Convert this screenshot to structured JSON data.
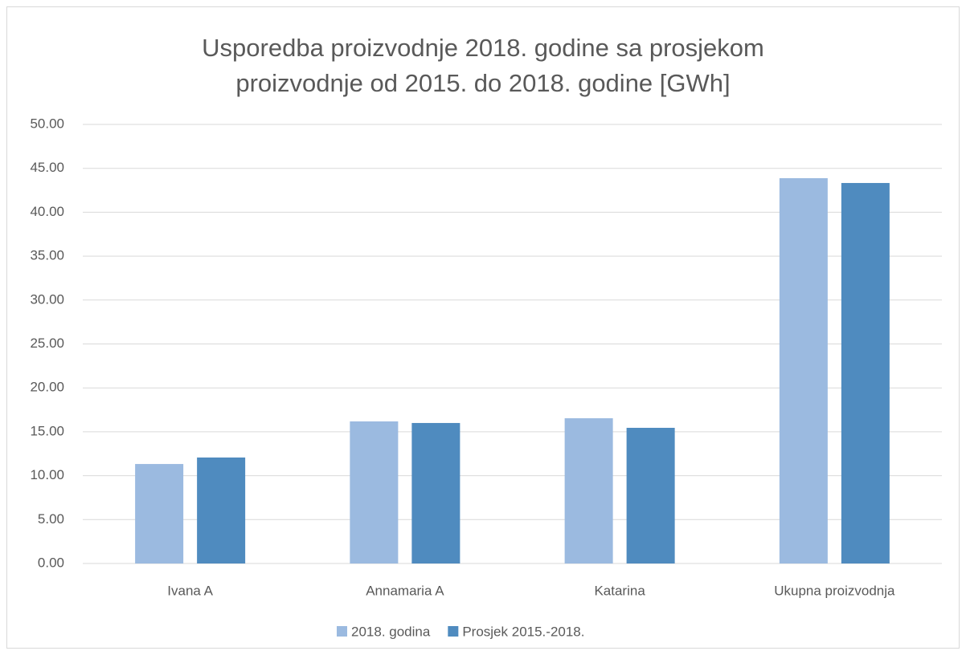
{
  "chart_data": {
    "type": "bar",
    "title": "Usporedba proizvodnje 2018. godine sa prosjekom proizvodnje od 2015. do 2018. godine [GWh]",
    "categories": [
      "Ivana A",
      "Annamaria A",
      "Katarina",
      "Ukupna proizvodnja"
    ],
    "series": [
      {
        "name": "2018. godina",
        "color": "#9bbae0",
        "values": [
          11.33,
          16.18,
          16.54,
          43.88
        ]
      },
      {
        "name": "Prosjek 2015.-2018.",
        "color": "#4f8bbf",
        "values": [
          12.07,
          16.0,
          15.45,
          43.33
        ]
      }
    ],
    "ylim": [
      0,
      50
    ],
    "yticks": [
      {
        "value": 0,
        "label": "0.00"
      },
      {
        "value": 5,
        "label": "5.00"
      },
      {
        "value": 10,
        "label": "10.00"
      },
      {
        "value": 15,
        "label": "15.00"
      },
      {
        "value": 20,
        "label": "20.00"
      },
      {
        "value": 25,
        "label": "25.00"
      },
      {
        "value": 30,
        "label": "30.00"
      },
      {
        "value": 35,
        "label": "35.00"
      },
      {
        "value": 40,
        "label": "40.00"
      },
      {
        "value": 45,
        "label": "45.00"
      },
      {
        "value": 50,
        "label": "50.00"
      }
    ],
    "grid": true,
    "legend": "bottom"
  }
}
